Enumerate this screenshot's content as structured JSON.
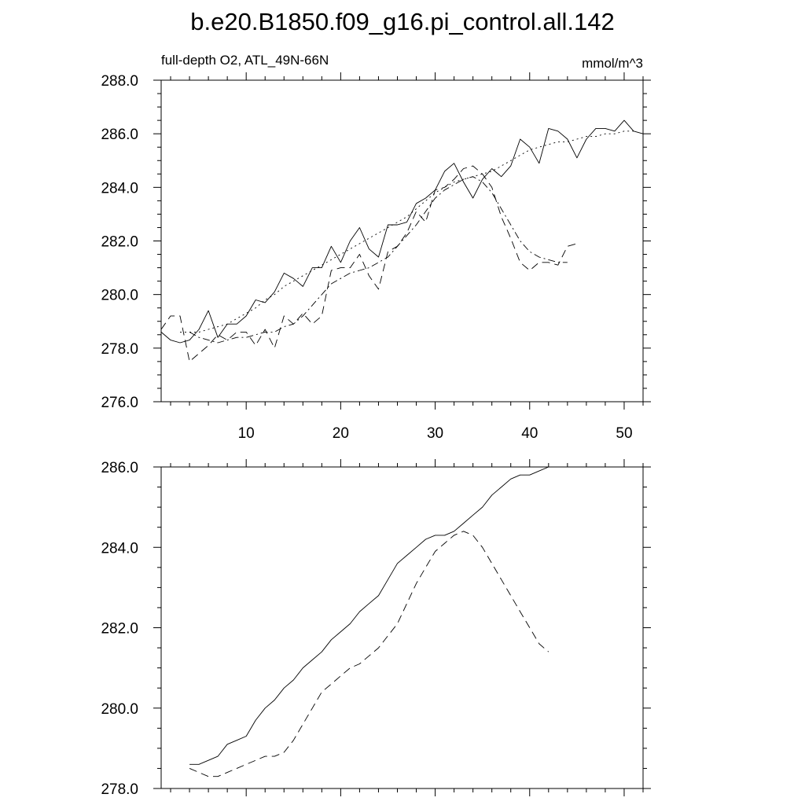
{
  "title": "b.e20.B1850.f09_g16.pi_control.all.142",
  "chart_data": [
    {
      "type": "line",
      "subtitle_left": "full-depth O2, ATL_49N-66N",
      "subtitle_right": "mmol/m^3",
      "xlim": [
        1,
        52
      ],
      "ylim": [
        276.0,
        288.0
      ],
      "xticks": [
        10,
        20,
        30,
        40,
        50
      ],
      "xtick_labels": [
        "10",
        "20",
        "30",
        "40",
        "50"
      ],
      "yticks": [
        276.0,
        278.0,
        280.0,
        282.0,
        284.0,
        286.0,
        288.0
      ],
      "ytick_labels": [
        "276.0",
        "278.0",
        "280.0",
        "282.0",
        "284.0",
        "286.0",
        "288.0"
      ],
      "series": [
        {
          "style": "solid",
          "x": [
            1,
            2,
            3,
            4,
            5,
            6,
            7,
            8,
            9,
            10,
            11,
            12,
            13,
            14,
            15,
            16,
            17,
            18,
            19,
            20,
            21,
            22,
            23,
            24,
            25,
            26,
            27,
            28,
            29,
            30,
            31,
            32,
            33,
            34,
            35,
            36,
            37,
            38,
            39,
            40,
            41,
            42,
            43,
            44,
            45,
            46,
            47,
            48,
            49,
            50,
            51,
            52
          ],
          "y": [
            278.6,
            278.3,
            278.2,
            278.3,
            278.7,
            279.4,
            278.4,
            278.9,
            278.9,
            279.2,
            279.8,
            279.7,
            280.1,
            280.8,
            280.6,
            280.3,
            281.0,
            281.0,
            281.8,
            281.2,
            282.0,
            282.5,
            281.7,
            281.4,
            282.6,
            282.6,
            282.7,
            283.4,
            283.6,
            283.9,
            284.6,
            284.9,
            284.2,
            283.6,
            284.3,
            284.7,
            284.4,
            284.8,
            285.8,
            285.5,
            284.9,
            286.2,
            286.1,
            285.8,
            285.1,
            285.8,
            286.2,
            286.2,
            286.1,
            286.5,
            286.1,
            286.0
          ]
        },
        {
          "style": "dashed",
          "x": [
            1,
            2,
            3,
            4,
            5,
            6,
            7,
            8,
            9,
            10,
            11,
            12,
            13,
            14,
            15,
            16,
            17,
            18,
            19,
            20,
            21,
            22,
            23,
            24,
            25,
            26,
            27,
            28,
            29,
            30,
            31,
            32,
            33,
            34,
            35,
            36,
            37,
            38,
            39,
            40,
            41,
            42,
            43,
            44,
            45
          ],
          "y": [
            278.7,
            279.2,
            279.2,
            277.5,
            277.8,
            278.1,
            278.5,
            278.3,
            278.6,
            278.6,
            278.1,
            278.7,
            278.0,
            279.2,
            278.9,
            279.3,
            278.9,
            279.2,
            280.9,
            281.0,
            281.0,
            281.5,
            280.7,
            280.2,
            281.6,
            281.8,
            282.3,
            283.1,
            282.7,
            283.9,
            284.0,
            284.3,
            284.7,
            284.8,
            284.5,
            284.0,
            282.9,
            282.1,
            281.2,
            280.9,
            281.2,
            281.2,
            281.1,
            281.8,
            281.9
          ]
        },
        {
          "style": "dash-dot",
          "x": [
            4,
            5,
            6,
            7,
            8,
            9,
            10,
            11,
            12,
            13,
            14,
            15,
            16,
            17,
            18,
            19,
            20,
            21,
            22,
            23,
            24,
            25,
            26,
            27,
            28,
            29,
            30,
            31,
            32,
            33,
            34,
            35,
            36,
            37,
            38,
            39,
            40,
            41,
            42,
            43,
            44
          ],
          "y": [
            278.6,
            278.4,
            278.3,
            278.2,
            278.3,
            278.4,
            278.4,
            278.5,
            278.6,
            278.6,
            278.8,
            278.9,
            279.2,
            279.6,
            280.0,
            280.4,
            280.6,
            280.8,
            280.9,
            281.0,
            281.2,
            281.4,
            281.8,
            282.2,
            282.6,
            283.1,
            283.6,
            283.9,
            284.1,
            284.3,
            284.4,
            284.2,
            283.8,
            283.2,
            282.6,
            282.0,
            281.6,
            281.4,
            281.3,
            281.2,
            281.2
          ]
        },
        {
          "style": "dotted",
          "x": [
            3,
            4,
            5,
            6,
            7,
            8,
            9,
            10,
            11,
            12,
            13,
            14,
            15,
            16,
            17,
            18,
            19,
            20,
            21,
            22,
            23,
            24,
            25,
            26,
            27,
            28,
            29,
            30,
            31,
            32,
            33,
            34,
            35,
            36,
            37,
            38,
            39,
            40,
            41,
            42,
            43,
            44,
            45,
            46,
            47,
            48,
            49,
            50,
            51
          ],
          "y": [
            278.6,
            278.6,
            278.6,
            278.7,
            278.8,
            278.9,
            279.1,
            279.3,
            279.5,
            279.8,
            280.0,
            280.3,
            280.5,
            280.7,
            280.9,
            281.1,
            281.3,
            281.5,
            281.7,
            281.9,
            282.1,
            282.3,
            282.5,
            282.7,
            282.9,
            283.2,
            283.5,
            283.8,
            284.0,
            284.2,
            284.3,
            284.4,
            284.5,
            284.6,
            284.8,
            285.0,
            285.2,
            285.4,
            285.5,
            285.6,
            285.7,
            285.7,
            285.8,
            285.9,
            285.9,
            286.0,
            286.0,
            286.1,
            286.1
          ]
        }
      ]
    },
    {
      "type": "line",
      "xlim": [
        1,
        52
      ],
      "ylim": [
        278.0,
        286.0
      ],
      "xticks": [
        10,
        20,
        30,
        40,
        50
      ],
      "xtick_labels": [],
      "yticks": [
        278.0,
        280.0,
        282.0,
        284.0,
        286.0
      ],
      "ytick_labels": [
        "278.0",
        "280.0",
        "282.0",
        "284.0",
        "286.0"
      ],
      "series": [
        {
          "style": "solid",
          "x": [
            4,
            5,
            6,
            7,
            8,
            9,
            10,
            11,
            12,
            13,
            14,
            15,
            16,
            17,
            18,
            19,
            20,
            21,
            22,
            23,
            24,
            25,
            26,
            27,
            28,
            29,
            30,
            31,
            32,
            33,
            34,
            35,
            36,
            37,
            38,
            39,
            40,
            41,
            42,
            43,
            44,
            45,
            46,
            47,
            48,
            49
          ],
          "y": [
            278.6,
            278.6,
            278.7,
            278.8,
            279.1,
            279.2,
            279.3,
            279.7,
            280.0,
            280.2,
            280.5,
            280.7,
            281.0,
            281.2,
            281.4,
            281.7,
            281.9,
            282.1,
            282.4,
            282.6,
            282.8,
            283.2,
            283.6,
            283.8,
            284.0,
            284.2,
            284.3,
            284.3,
            284.4,
            284.6,
            284.8,
            285.0,
            285.3,
            285.5,
            285.7,
            285.8,
            285.8,
            285.9,
            286.0,
            286.0,
            286.0,
            286.0,
            286.0,
            286.0,
            286.0,
            286.0
          ]
        },
        {
          "style": "dashed",
          "x": [
            4,
            5,
            6,
            7,
            8,
            9,
            10,
            11,
            12,
            13,
            14,
            15,
            16,
            17,
            18,
            19,
            20,
            21,
            22,
            23,
            24,
            25,
            26,
            27,
            28,
            29,
            30,
            31,
            32,
            33,
            34,
            35,
            36,
            37,
            38,
            39,
            40,
            41,
            42
          ],
          "y": [
            278.5,
            278.4,
            278.3,
            278.3,
            278.4,
            278.5,
            278.6,
            278.7,
            278.8,
            278.8,
            278.9,
            279.2,
            279.6,
            280.0,
            280.4,
            280.6,
            280.8,
            281.0,
            281.1,
            281.3,
            281.5,
            281.8,
            282.1,
            282.6,
            283.1,
            283.5,
            283.9,
            284.1,
            284.3,
            284.4,
            284.3,
            284.0,
            283.6,
            283.2,
            282.8,
            282.4,
            282.0,
            281.6,
            281.4
          ]
        }
      ]
    }
  ]
}
